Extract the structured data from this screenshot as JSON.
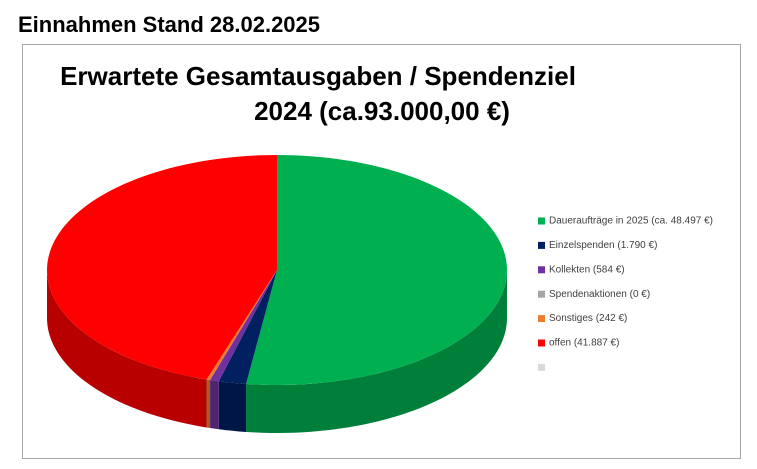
{
  "header": {
    "title": "Einnahmen Stand 28.02.2025"
  },
  "chart_data": {
    "type": "pie",
    "three_d": true,
    "legend": "right",
    "title": [
      "Erwartete Gesamtausgaben / Spendenziel",
      "2024 (ca.93.000,00 €)"
    ],
    "categories": [
      "Daueraufträge in 2025 (ca. 48.497 €)",
      "Einzelspenden (1.790 €)",
      "Kollekten (584 €)",
      "Spendenaktionen (0 €)",
      "Sonstiges (242 €)",
      "offen (41.887 €)",
      null
    ],
    "values": [
      48497,
      1790,
      584,
      0,
      242,
      41887,
      null
    ],
    "colors": [
      "#00b050",
      "#002060",
      "#7030a0",
      "#a5a5a5",
      "#ed7d31",
      "#ff0000",
      "#d9d9d9"
    ]
  }
}
